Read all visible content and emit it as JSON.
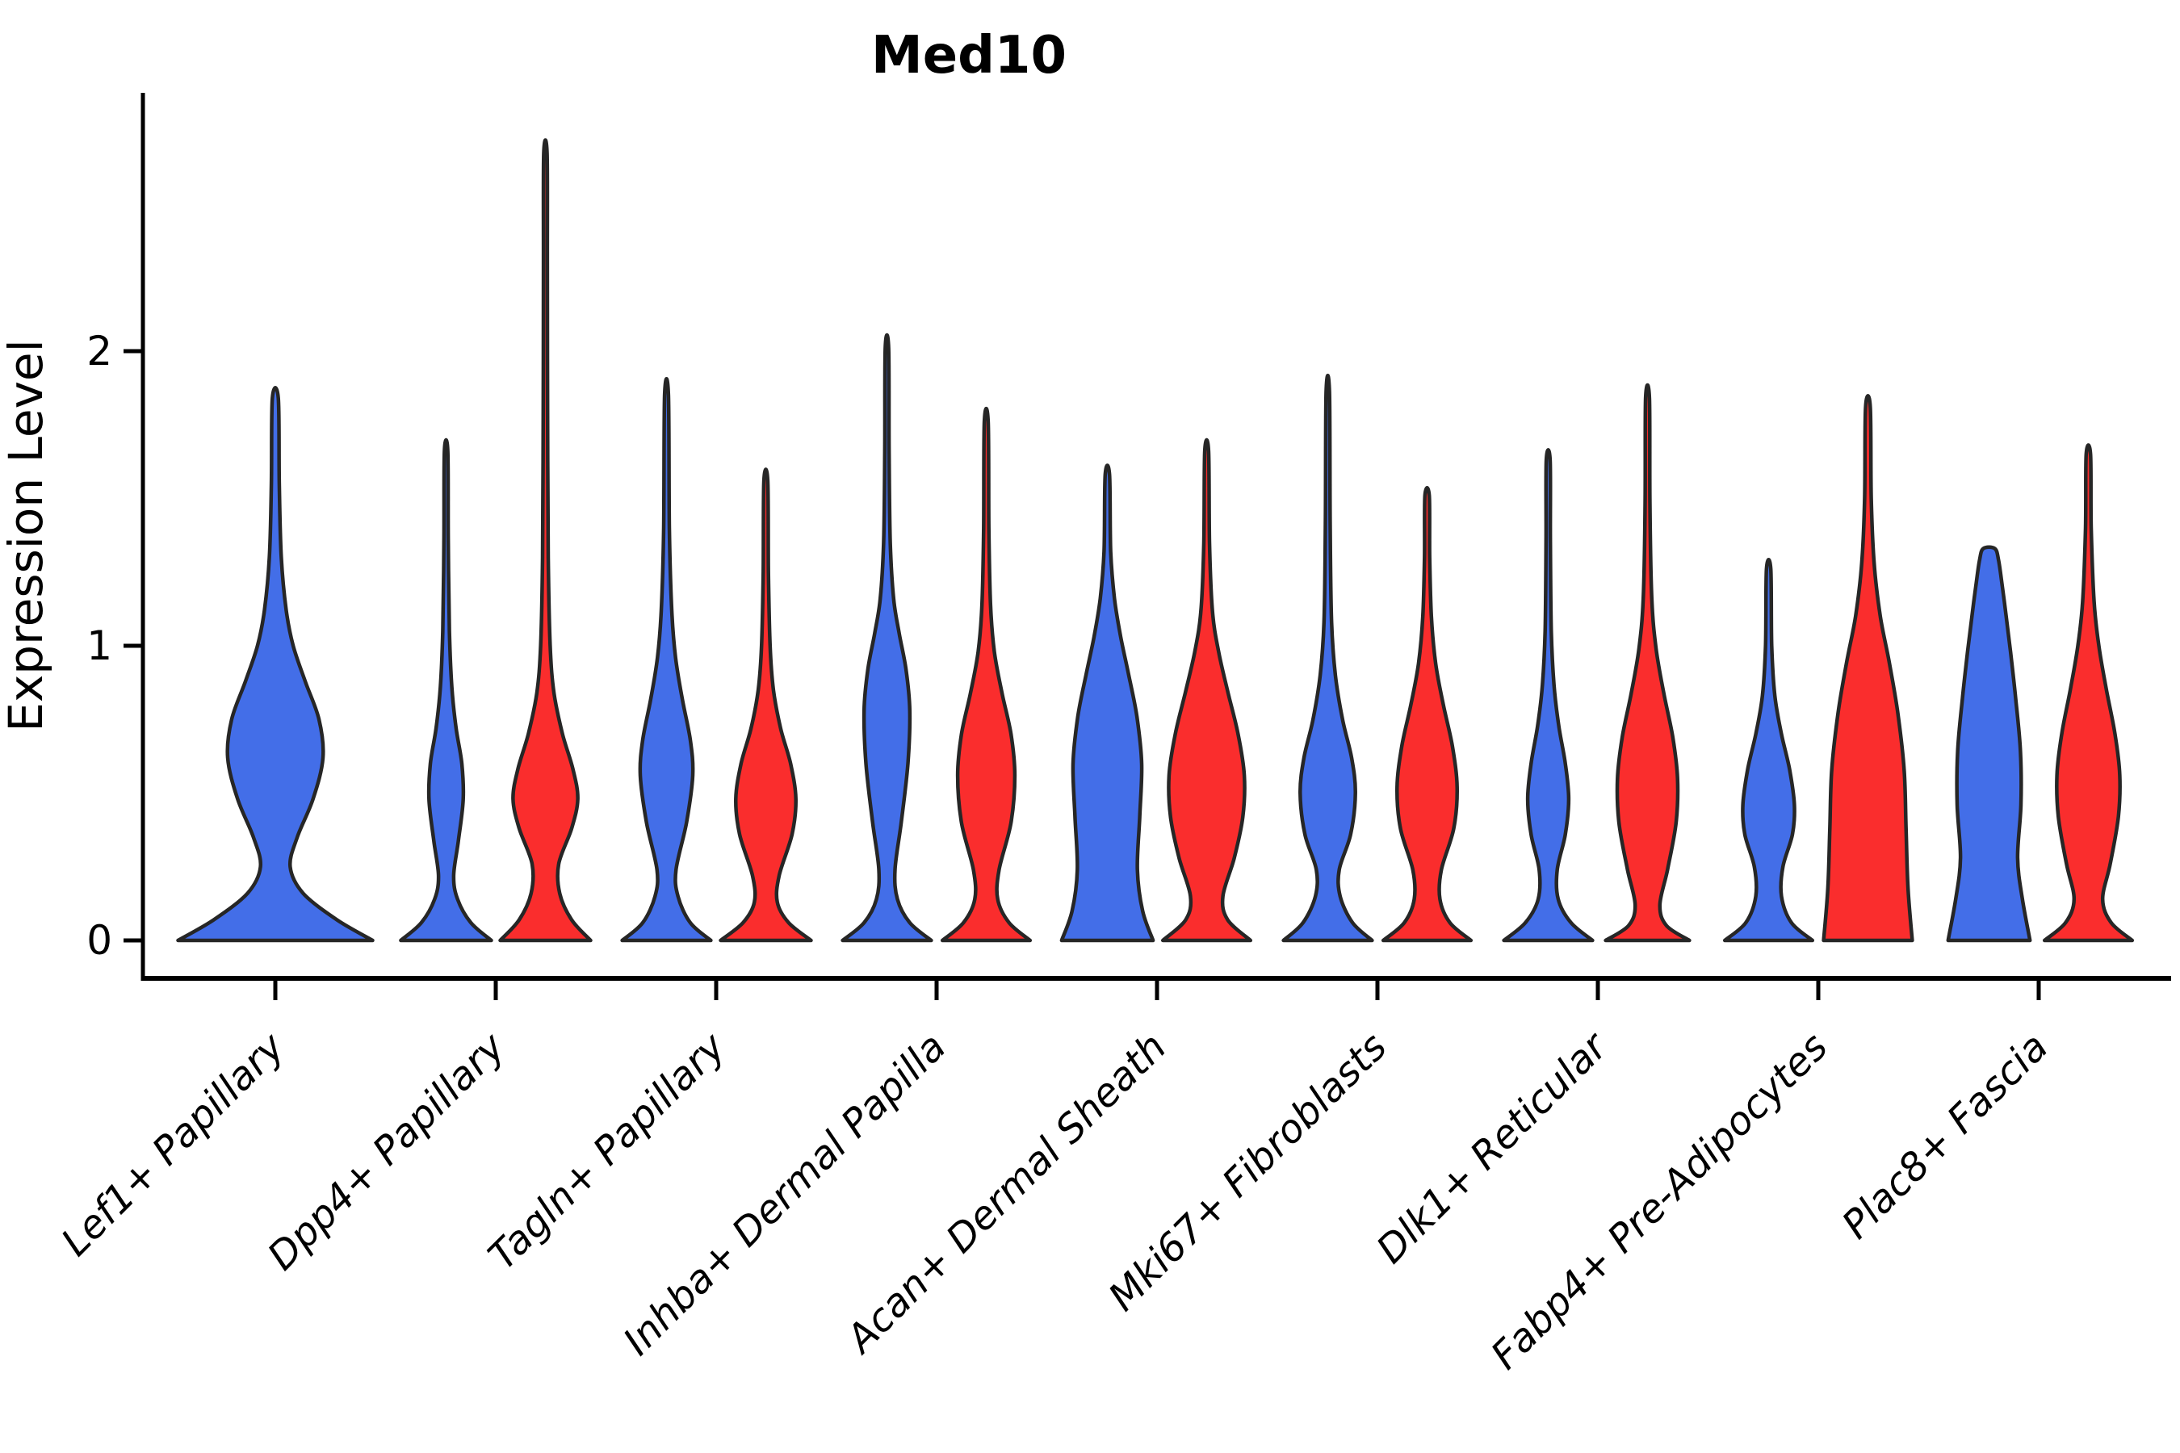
{
  "chart_data": {
    "type": "violin",
    "title": "Med10",
    "ylabel": "Expression Level",
    "xlabel": "",
    "yticks": [
      0,
      1,
      2
    ],
    "ylim": [
      -0.13,
      2.85
    ],
    "grid": false,
    "legend": "none",
    "categories": [
      "Lef1+ Papillary",
      "Dpp4+ Papillary",
      "Tagln+ Papillary",
      "Inhba+ Dermal Papilla",
      "Acan+ Dermal Sheath",
      "Mki67+ Fibroblasts",
      "Dlk1+ Reticular",
      "Fabp4+ Pre-Adipocytes",
      "Plac8+ Fascia"
    ],
    "colors": {
      "blue_fill": "#436EE8",
      "red_fill": "#FA2D2D",
      "violin_outline": "#262626",
      "axis": "#000000",
      "text": "#000000",
      "background": "#ffffff"
    },
    "violins": [
      {
        "category": "Lef1+ Papillary",
        "group": "blue",
        "width": "full",
        "max": 1.84,
        "profile": [
          [
            0,
            0.98
          ],
          [
            0.07,
            0.62
          ],
          [
            0.16,
            0.28
          ],
          [
            0.25,
            0.15
          ],
          [
            0.35,
            0.22
          ],
          [
            0.48,
            0.38
          ],
          [
            0.62,
            0.48
          ],
          [
            0.75,
            0.44
          ],
          [
            0.88,
            0.3
          ],
          [
            1.0,
            0.18
          ],
          [
            1.12,
            0.11
          ],
          [
            1.3,
            0.06
          ],
          [
            1.55,
            0.04
          ],
          [
            1.84,
            0.03
          ]
        ]
      },
      {
        "category": "Dpp4+ Papillary",
        "group": "blue",
        "width": "half",
        "max": 1.66,
        "profile": [
          [
            0,
            0.95
          ],
          [
            0.06,
            0.52
          ],
          [
            0.14,
            0.24
          ],
          [
            0.22,
            0.16
          ],
          [
            0.34,
            0.26
          ],
          [
            0.48,
            0.36
          ],
          [
            0.6,
            0.33
          ],
          [
            0.72,
            0.21
          ],
          [
            0.86,
            0.12
          ],
          [
            1.05,
            0.07
          ],
          [
            1.35,
            0.045
          ],
          [
            1.66,
            0.035
          ]
        ]
      },
      {
        "category": "Dpp4+ Papillary",
        "group": "red",
        "width": "half",
        "max": 2.67,
        "profile": [
          [
            0,
            0.95
          ],
          [
            0.07,
            0.55
          ],
          [
            0.16,
            0.3
          ],
          [
            0.26,
            0.28
          ],
          [
            0.38,
            0.55
          ],
          [
            0.48,
            0.68
          ],
          [
            0.58,
            0.58
          ],
          [
            0.7,
            0.36
          ],
          [
            0.84,
            0.18
          ],
          [
            1.0,
            0.1
          ],
          [
            1.3,
            0.06
          ],
          [
            1.8,
            0.045
          ],
          [
            2.3,
            0.04
          ],
          [
            2.67,
            0.035
          ]
        ]
      },
      {
        "category": "Tagln+ Papillary",
        "group": "blue",
        "width": "half",
        "max": 1.85,
        "profile": [
          [
            0,
            0.93
          ],
          [
            0.06,
            0.5
          ],
          [
            0.15,
            0.24
          ],
          [
            0.24,
            0.2
          ],
          [
            0.4,
            0.42
          ],
          [
            0.56,
            0.55
          ],
          [
            0.68,
            0.5
          ],
          [
            0.82,
            0.33
          ],
          [
            0.96,
            0.19
          ],
          [
            1.12,
            0.11
          ],
          [
            1.4,
            0.06
          ],
          [
            1.85,
            0.04
          ]
        ]
      },
      {
        "category": "Tagln+ Papillary",
        "group": "red",
        "width": "half",
        "max": 1.56,
        "profile": [
          [
            0,
            0.95
          ],
          [
            0.06,
            0.48
          ],
          [
            0.13,
            0.24
          ],
          [
            0.22,
            0.28
          ],
          [
            0.36,
            0.55
          ],
          [
            0.48,
            0.63
          ],
          [
            0.6,
            0.52
          ],
          [
            0.72,
            0.31
          ],
          [
            0.85,
            0.16
          ],
          [
            1.0,
            0.09
          ],
          [
            1.25,
            0.055
          ],
          [
            1.56,
            0.04
          ]
        ]
      },
      {
        "category": "Inhba+ Dermal Papilla",
        "group": "blue",
        "width": "half",
        "max": 2.01,
        "profile": [
          [
            0,
            0.93
          ],
          [
            0.06,
            0.48
          ],
          [
            0.14,
            0.22
          ],
          [
            0.24,
            0.17
          ],
          [
            0.4,
            0.3
          ],
          [
            0.6,
            0.44
          ],
          [
            0.78,
            0.48
          ],
          [
            0.92,
            0.4
          ],
          [
            1.04,
            0.26
          ],
          [
            1.16,
            0.14
          ],
          [
            1.35,
            0.07
          ],
          [
            1.65,
            0.045
          ],
          [
            2.01,
            0.035
          ]
        ]
      },
      {
        "category": "Inhba+ Dermal Papilla",
        "group": "red",
        "width": "half",
        "max": 1.76,
        "profile": [
          [
            0,
            0.92
          ],
          [
            0.06,
            0.48
          ],
          [
            0.14,
            0.24
          ],
          [
            0.24,
            0.27
          ],
          [
            0.4,
            0.52
          ],
          [
            0.56,
            0.6
          ],
          [
            0.7,
            0.52
          ],
          [
            0.84,
            0.33
          ],
          [
            0.98,
            0.17
          ],
          [
            1.14,
            0.09
          ],
          [
            1.4,
            0.055
          ],
          [
            1.76,
            0.04
          ]
        ]
      },
      {
        "category": "Acan+ Dermal Sheath",
        "group": "blue",
        "width": "half",
        "max": 1.58,
        "profile": [
          [
            0,
            0.96
          ],
          [
            0.1,
            0.74
          ],
          [
            0.24,
            0.63
          ],
          [
            0.42,
            0.68
          ],
          [
            0.6,
            0.72
          ],
          [
            0.76,
            0.62
          ],
          [
            0.9,
            0.45
          ],
          [
            1.03,
            0.28
          ],
          [
            1.16,
            0.15
          ],
          [
            1.32,
            0.07
          ],
          [
            1.58,
            0.045
          ]
        ]
      },
      {
        "category": "Acan+ Dermal Sheath",
        "group": "red",
        "width": "half",
        "max": 1.66,
        "profile": [
          [
            0,
            0.92
          ],
          [
            0.07,
            0.44
          ],
          [
            0.15,
            0.34
          ],
          [
            0.28,
            0.58
          ],
          [
            0.42,
            0.76
          ],
          [
            0.56,
            0.79
          ],
          [
            0.7,
            0.66
          ],
          [
            0.84,
            0.45
          ],
          [
            0.98,
            0.25
          ],
          [
            1.12,
            0.12
          ],
          [
            1.35,
            0.06
          ],
          [
            1.66,
            0.04
          ]
        ]
      },
      {
        "category": "Mki67+ Fibroblasts",
        "group": "blue",
        "width": "half",
        "max": 1.86,
        "profile": [
          [
            0,
            0.93
          ],
          [
            0.06,
            0.52
          ],
          [
            0.15,
            0.26
          ],
          [
            0.24,
            0.24
          ],
          [
            0.36,
            0.48
          ],
          [
            0.5,
            0.58
          ],
          [
            0.62,
            0.5
          ],
          [
            0.75,
            0.31
          ],
          [
            0.9,
            0.16
          ],
          [
            1.08,
            0.08
          ],
          [
            1.4,
            0.05
          ],
          [
            1.86,
            0.035
          ]
        ]
      },
      {
        "category": "Mki67+ Fibroblasts",
        "group": "red",
        "width": "half",
        "max": 1.51,
        "profile": [
          [
            0,
            0.92
          ],
          [
            0.06,
            0.48
          ],
          [
            0.14,
            0.27
          ],
          [
            0.24,
            0.3
          ],
          [
            0.38,
            0.56
          ],
          [
            0.52,
            0.63
          ],
          [
            0.66,
            0.53
          ],
          [
            0.8,
            0.34
          ],
          [
            0.94,
            0.18
          ],
          [
            1.1,
            0.09
          ],
          [
            1.3,
            0.055
          ],
          [
            1.51,
            0.045
          ]
        ]
      },
      {
        "category": "Dlk1+ Reticular",
        "group": "blue",
        "width": "half",
        "max": 1.63,
        "profile": [
          [
            0,
            0.93
          ],
          [
            0.06,
            0.48
          ],
          [
            0.14,
            0.21
          ],
          [
            0.24,
            0.19
          ],
          [
            0.36,
            0.36
          ],
          [
            0.48,
            0.43
          ],
          [
            0.6,
            0.36
          ],
          [
            0.73,
            0.22
          ],
          [
            0.87,
            0.12
          ],
          [
            1.05,
            0.065
          ],
          [
            1.35,
            0.045
          ],
          [
            1.63,
            0.04
          ]
        ]
      },
      {
        "category": "Dlk1+ Reticular",
        "group": "red",
        "width": "half",
        "max": 1.84,
        "profile": [
          [
            0,
            0.88
          ],
          [
            0.05,
            0.4
          ],
          [
            0.12,
            0.26
          ],
          [
            0.24,
            0.42
          ],
          [
            0.4,
            0.6
          ],
          [
            0.55,
            0.63
          ],
          [
            0.69,
            0.53
          ],
          [
            0.84,
            0.34
          ],
          [
            0.99,
            0.18
          ],
          [
            1.16,
            0.09
          ],
          [
            1.48,
            0.05
          ],
          [
            1.84,
            0.04
          ]
        ]
      },
      {
        "category": "Fabp4+ Pre-Adipocytes",
        "group": "blue",
        "width": "half",
        "max": 1.26,
        "profile": [
          [
            0,
            0.92
          ],
          [
            0.06,
            0.48
          ],
          [
            0.15,
            0.27
          ],
          [
            0.25,
            0.3
          ],
          [
            0.36,
            0.5
          ],
          [
            0.46,
            0.54
          ],
          [
            0.58,
            0.44
          ],
          [
            0.7,
            0.27
          ],
          [
            0.83,
            0.13
          ],
          [
            1.0,
            0.065
          ],
          [
            1.26,
            0.045
          ]
        ]
      },
      {
        "category": "Fabp4+ Pre-Adipocytes",
        "group": "red",
        "width": "half",
        "max": 1.81,
        "profile": [
          [
            0,
            0.93
          ],
          [
            0.18,
            0.84
          ],
          [
            0.38,
            0.8
          ],
          [
            0.58,
            0.76
          ],
          [
            0.78,
            0.62
          ],
          [
            0.95,
            0.44
          ],
          [
            1.1,
            0.26
          ],
          [
            1.28,
            0.13
          ],
          [
            1.5,
            0.07
          ],
          [
            1.81,
            0.05
          ]
        ]
      },
      {
        "category": "Plac8+ Fascia",
        "group": "blue",
        "width": "half",
        "max": 1.33,
        "profile": [
          [
            0,
            0.86
          ],
          [
            0.14,
            0.7
          ],
          [
            0.28,
            0.6
          ],
          [
            0.46,
            0.67
          ],
          [
            0.64,
            0.66
          ],
          [
            0.82,
            0.56
          ],
          [
            0.98,
            0.45
          ],
          [
            1.1,
            0.36
          ],
          [
            1.2,
            0.28
          ],
          [
            1.29,
            0.2
          ],
          [
            1.33,
            0.12
          ]
        ]
      },
      {
        "category": "Plac8+ Fascia",
        "group": "red",
        "width": "half",
        "max": 1.65,
        "profile": [
          [
            0,
            0.92
          ],
          [
            0.06,
            0.48
          ],
          [
            0.14,
            0.3
          ],
          [
            0.26,
            0.46
          ],
          [
            0.42,
            0.63
          ],
          [
            0.56,
            0.66
          ],
          [
            0.7,
            0.56
          ],
          [
            0.85,
            0.38
          ],
          [
            1.0,
            0.22
          ],
          [
            1.15,
            0.12
          ],
          [
            1.4,
            0.06
          ],
          [
            1.65,
            0.045
          ]
        ]
      }
    ]
  }
}
